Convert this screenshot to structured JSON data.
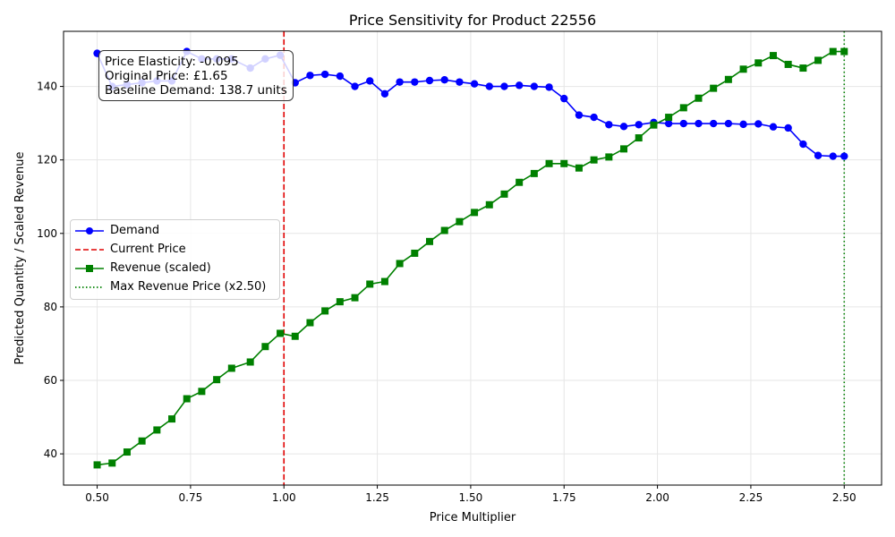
{
  "chart_data": {
    "type": "line",
    "title": "Price Sensitivity for Product 22556",
    "xlabel": "Price Multiplier",
    "ylabel": "Predicted Quantity / Scaled Revenue",
    "xlim": [
      0.41,
      2.6
    ],
    "ylim": [
      31.5,
      155
    ],
    "x_ticks": [
      0.5,
      0.75,
      1.0,
      1.25,
      1.5,
      1.75,
      2.0,
      2.25,
      2.5
    ],
    "x_tick_labels": [
      "0.50",
      "0.75",
      "1.00",
      "1.25",
      "1.50",
      "1.75",
      "2.00",
      "2.25",
      "2.50"
    ],
    "y_ticks": [
      40,
      60,
      80,
      100,
      120,
      140
    ],
    "y_tick_labels": [
      "40",
      "60",
      "80",
      "100",
      "120",
      "140"
    ],
    "grid": true,
    "x": [
      0.5,
      0.54,
      0.58,
      0.62,
      0.66,
      0.7,
      0.74,
      0.78,
      0.82,
      0.86,
      0.91,
      0.95,
      0.99,
      1.03,
      1.07,
      1.11,
      1.15,
      1.19,
      1.23,
      1.27,
      1.31,
      1.35,
      1.39,
      1.43,
      1.47,
      1.51,
      1.55,
      1.59,
      1.63,
      1.67,
      1.71,
      1.75,
      1.79,
      1.83,
      1.87,
      1.91,
      1.95,
      1.99,
      2.03,
      2.07,
      2.11,
      2.15,
      2.19,
      2.23,
      2.27,
      2.31,
      2.35,
      2.39,
      2.43,
      2.47,
      2.5
    ],
    "series": [
      {
        "name": "Demand",
        "color": "#0000ff",
        "marker": "circle",
        "values": [
          149.0,
          140.0,
          140.5,
          141.0,
          141.5,
          141.5,
          149.5,
          147.5,
          147.5,
          147.5,
          145.0,
          147.5,
          148.5,
          141.0,
          143.0,
          143.3,
          142.8,
          140.0,
          141.5,
          138.0,
          141.2,
          141.2,
          141.6,
          141.8,
          141.2,
          140.7,
          140.0,
          140.0,
          140.3,
          140.0,
          139.8,
          136.7,
          132.2,
          131.6,
          129.6,
          129.1,
          129.6,
          130.2,
          129.9,
          129.9,
          129.9,
          129.9,
          129.9,
          129.7,
          129.8,
          129.0,
          128.7,
          124.3,
          121.2,
          121.0,
          121.0
        ]
      },
      {
        "name": "Revenue (scaled)",
        "color": "#008000",
        "marker": "square",
        "values": [
          37.0,
          37.5,
          40.5,
          43.5,
          46.5,
          49.5,
          55.0,
          57.0,
          60.2,
          63.3,
          65.0,
          69.2,
          72.8,
          72.0,
          75.7,
          78.9,
          81.4,
          82.5,
          86.2,
          86.9,
          91.8,
          94.6,
          97.8,
          100.8,
          103.2,
          105.7,
          107.8,
          110.7,
          113.9,
          116.3,
          119.0,
          119.0,
          117.8,
          120.0,
          120.8,
          123.0,
          126.0,
          129.5,
          131.6,
          134.2,
          136.8,
          139.5,
          141.9,
          144.7,
          146.4,
          148.4,
          146.0,
          145.0,
          147.1,
          149.5,
          149.5
        ]
      }
    ],
    "reference_lines": [
      {
        "name": "Current Price",
        "x": 1.0,
        "color": "#e00000",
        "style": "dashed"
      },
      {
        "name": "Max Revenue Price (x2.50)",
        "x": 2.5,
        "color": "#008000",
        "style": "dotted"
      }
    ],
    "legend": {
      "placement": "center-left",
      "entries": [
        "Demand",
        "Current Price",
        "Revenue (scaled)",
        "Max Revenue Price (x2.50)"
      ]
    },
    "annotation": {
      "lines": [
        "Price Elasticity: -0.095",
        "Original Price: £1.65",
        "Baseline Demand: 138.7 units"
      ]
    }
  }
}
